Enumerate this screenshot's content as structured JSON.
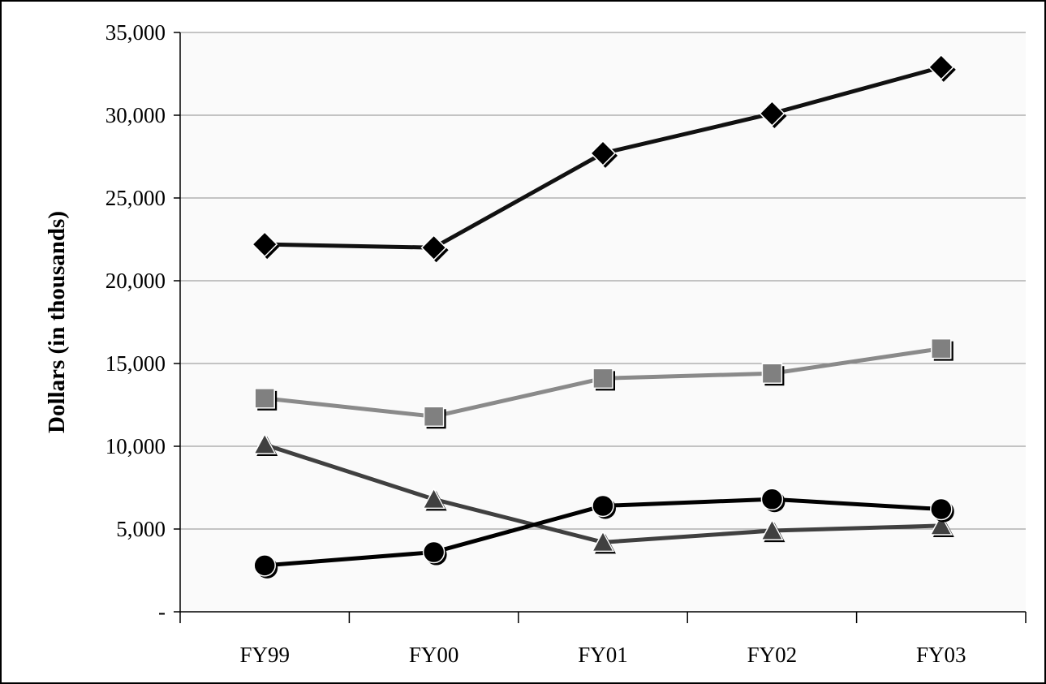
{
  "chart_data": {
    "type": "line",
    "title": "",
    "xlabel": "",
    "ylabel": "Dollars (in thousands)",
    "categories": [
      "FY99",
      "FY00",
      "FY01",
      "FY02",
      "FY03"
    ],
    "ylim": [
      0,
      35000
    ],
    "yticks": [
      0,
      5000,
      10000,
      15000,
      20000,
      25000,
      30000,
      35000
    ],
    "ytick_labels": [
      "-",
      "5,000",
      "10,000",
      "15,000",
      "20,000",
      "25,000",
      "30,000",
      "35,000"
    ],
    "grid": true,
    "legend": "none",
    "series": [
      {
        "marker": "diamond",
        "color": "#000000",
        "line_color": "#111111",
        "values": [
          22200,
          22000,
          27700,
          30100,
          32900
        ]
      },
      {
        "marker": "square",
        "color": "#808080",
        "line_color": "#8a8a8a",
        "values": [
          12900,
          11800,
          14100,
          14400,
          15900
        ]
      },
      {
        "marker": "triangle",
        "color": "#404040",
        "line_color": "#404040",
        "values": [
          10100,
          6800,
          4200,
          4900,
          5200
        ]
      },
      {
        "marker": "circle",
        "color": "#000000",
        "line_color": "#000000",
        "values": [
          2800,
          3600,
          6400,
          6800,
          6200
        ]
      }
    ]
  }
}
